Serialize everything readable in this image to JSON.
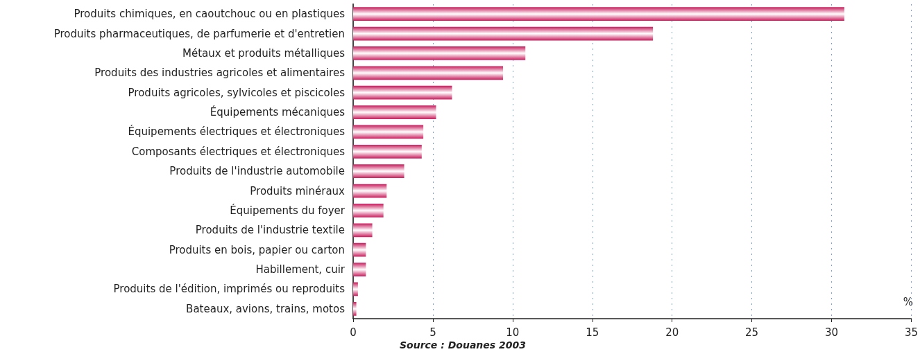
{
  "chart_data": {
    "type": "bar",
    "orientation": "horizontal",
    "categories": [
      "Produits chimiques, en caoutchouc ou en plastiques",
      "Produits pharmaceutiques, de parfumerie et d'entretien",
      "Métaux et produits métalliques",
      "Produits des industries agricoles et alimentaires",
      "Produits agricoles, sylvicoles et piscicoles",
      "Équipements mécaniques",
      "Équipements électriques et électroniques",
      "Composants électriques et électroniques",
      "Produits de l'industrie automobile",
      "Produits minéraux",
      "Équipements du foyer",
      "Produits de l'industrie textile",
      "Produits en bois, papier ou carton",
      "Habillement, cuir",
      "Produits de l'édition, imprimés ou reproduits",
      "Bateaux, avions, trains, motos"
    ],
    "values": [
      30.8,
      18.8,
      10.8,
      9.4,
      6.2,
      5.2,
      4.4,
      4.3,
      3.2,
      2.1,
      1.9,
      1.2,
      0.8,
      0.8,
      0.3,
      0.2
    ],
    "color": "#c8195a",
    "xlabel": "%",
    "xlim": [
      0,
      35
    ],
    "xticks": [
      0,
      5,
      10,
      15,
      20,
      25,
      30,
      35
    ],
    "grid": "x",
    "annotations": [
      "Source : Douanes 2003"
    ]
  }
}
